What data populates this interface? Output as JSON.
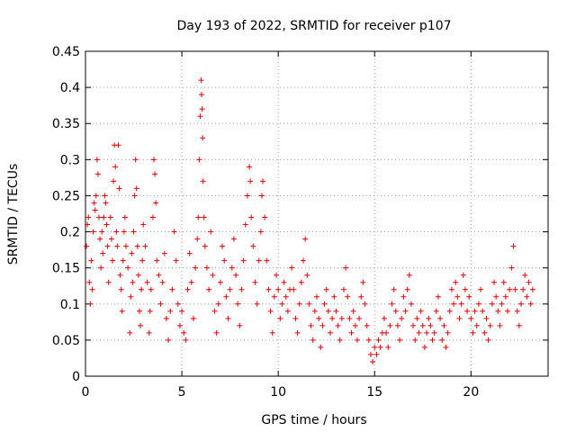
{
  "chart_data": {
    "type": "scatter",
    "title": "Day 193 of 2022, SRMTID for receiver p107",
    "xlabel": "GPS time / hours",
    "ylabel": "SRMTID / TECUs",
    "xlim": [
      0,
      24
    ],
    "ylim": [
      0,
      0.45
    ],
    "x_ticks": [
      0,
      5,
      10,
      15,
      20
    ],
    "x_tick_labels": [
      "0",
      "5",
      "10",
      "15",
      "20"
    ],
    "y_ticks": [
      0,
      0.05,
      0.1,
      0.15,
      0.2,
      0.25,
      0.3,
      0.35,
      0.4,
      0.45
    ],
    "y_tick_labels": [
      "0",
      "0.05",
      "0.1",
      "0.15",
      "0.2",
      "0.25",
      "0.3",
      "0.35",
      "0.4",
      "0.45"
    ],
    "grid": true,
    "marker": "+",
    "color": "#e00000",
    "series": [
      {
        "name": "SRMTID",
        "points": [
          [
            0.05,
            0.18
          ],
          [
            0.1,
            0.21
          ],
          [
            0.15,
            0.22
          ],
          [
            0.2,
            0.13
          ],
          [
            0.25,
            0.1
          ],
          [
            0.3,
            0.16
          ],
          [
            0.35,
            0.12
          ],
          [
            0.4,
            0.2
          ],
          [
            0.45,
            0.24
          ],
          [
            0.5,
            0.23
          ],
          [
            0.55,
            0.25
          ],
          [
            0.6,
            0.3
          ],
          [
            0.65,
            0.28
          ],
          [
            0.7,
            0.22
          ],
          [
            0.75,
            0.19
          ],
          [
            0.8,
            0.15
          ],
          [
            0.85,
            0.2
          ],
          [
            0.9,
            0.17
          ],
          [
            0.95,
            0.22
          ],
          [
            1.0,
            0.25
          ],
          [
            1.05,
            0.24
          ],
          [
            1.1,
            0.21
          ],
          [
            1.15,
            0.18
          ],
          [
            1.2,
            0.13
          ],
          [
            1.3,
            0.22
          ],
          [
            1.35,
            0.19
          ],
          [
            1.4,
            0.16
          ],
          [
            1.45,
            0.27
          ],
          [
            1.5,
            0.32
          ],
          [
            1.55,
            0.29
          ],
          [
            1.6,
            0.2
          ],
          [
            1.65,
            0.18
          ],
          [
            1.7,
            0.32
          ],
          [
            1.75,
            0.26
          ],
          [
            1.8,
            0.14
          ],
          [
            1.85,
            0.12
          ],
          [
            1.9,
            0.09
          ],
          [
            1.95,
            0.16
          ],
          [
            2.0,
            0.2
          ],
          [
            2.05,
            0.22
          ],
          [
            2.1,
            0.18
          ],
          [
            2.2,
            0.15
          ],
          [
            2.3,
            0.06
          ],
          [
            2.35,
            0.11
          ],
          [
            2.4,
            0.17
          ],
          [
            2.45,
            0.13
          ],
          [
            2.5,
            0.2
          ],
          [
            2.55,
            0.25
          ],
          [
            2.6,
            0.3
          ],
          [
            2.65,
            0.26
          ],
          [
            2.7,
            0.18
          ],
          [
            2.75,
            0.14
          ],
          [
            2.8,
            0.09
          ],
          [
            2.85,
            0.07
          ],
          [
            2.9,
            0.12
          ],
          [
            2.95,
            0.16
          ],
          [
            3.0,
            0.21
          ],
          [
            3.1,
            0.18
          ],
          [
            3.2,
            0.13
          ],
          [
            3.3,
            0.06
          ],
          [
            3.35,
            0.09
          ],
          [
            3.4,
            0.12
          ],
          [
            3.5,
            0.22
          ],
          [
            3.55,
            0.3
          ],
          [
            3.6,
            0.28
          ],
          [
            3.65,
            0.24
          ],
          [
            3.7,
            0.16
          ],
          [
            3.8,
            0.14
          ],
          [
            3.9,
            0.1
          ],
          [
            4.0,
            0.13
          ],
          [
            4.1,
            0.17
          ],
          [
            4.2,
            0.08
          ],
          [
            4.3,
            0.05
          ],
          [
            4.4,
            0.09
          ],
          [
            4.5,
            0.12
          ],
          [
            4.6,
            0.2
          ],
          [
            4.7,
            0.16
          ],
          [
            4.8,
            0.1
          ],
          [
            4.9,
            0.07
          ],
          [
            5.0,
            0.09
          ],
          [
            5.1,
            0.06
          ],
          [
            5.2,
            0.05
          ],
          [
            5.3,
            0.12
          ],
          [
            5.4,
            0.17
          ],
          [
            5.5,
            0.13
          ],
          [
            5.6,
            0.08
          ],
          [
            5.7,
            0.15
          ],
          [
            5.8,
            0.19
          ],
          [
            5.85,
            0.22
          ],
          [
            5.9,
            0.3
          ],
          [
            5.95,
            0.36
          ],
          [
            6.0,
            0.41
          ],
          [
            6.02,
            0.39
          ],
          [
            6.05,
            0.37
          ],
          [
            6.08,
            0.33
          ],
          [
            6.1,
            0.27
          ],
          [
            6.15,
            0.22
          ],
          [
            6.2,
            0.18
          ],
          [
            6.3,
            0.15
          ],
          [
            6.4,
            0.12
          ],
          [
            6.5,
            0.2
          ],
          [
            6.6,
            0.14
          ],
          [
            6.7,
            0.09
          ],
          [
            6.8,
            0.06
          ],
          [
            6.9,
            0.1
          ],
          [
            7.0,
            0.13
          ],
          [
            7.1,
            0.18
          ],
          [
            7.2,
            0.16
          ],
          [
            7.3,
            0.11
          ],
          [
            7.4,
            0.08
          ],
          [
            7.5,
            0.12
          ],
          [
            7.6,
            0.15
          ],
          [
            7.7,
            0.19
          ],
          [
            7.8,
            0.14
          ],
          [
            7.9,
            0.1
          ],
          [
            8.0,
            0.07
          ],
          [
            8.1,
            0.12
          ],
          [
            8.2,
            0.16
          ],
          [
            8.3,
            0.21
          ],
          [
            8.4,
            0.25
          ],
          [
            8.5,
            0.29
          ],
          [
            8.55,
            0.27
          ],
          [
            8.6,
            0.22
          ],
          [
            8.7,
            0.18
          ],
          [
            8.8,
            0.13
          ],
          [
            8.9,
            0.1
          ],
          [
            9.0,
            0.16
          ],
          [
            9.1,
            0.2
          ],
          [
            9.15,
            0.25
          ],
          [
            9.2,
            0.27
          ],
          [
            9.3,
            0.22
          ],
          [
            9.4,
            0.16
          ],
          [
            9.5,
            0.12
          ],
          [
            9.6,
            0.09
          ],
          [
            9.7,
            0.06
          ],
          [
            9.8,
            0.11
          ],
          [
            9.9,
            0.14
          ],
          [
            10.0,
            0.12
          ],
          [
            10.1,
            0.08
          ],
          [
            10.2,
            0.1
          ],
          [
            10.3,
            0.13
          ],
          [
            10.4,
            0.11
          ],
          [
            10.5,
            0.09
          ],
          [
            10.6,
            0.12
          ],
          [
            10.7,
            0.15
          ],
          [
            10.8,
            0.12
          ],
          [
            10.9,
            0.08
          ],
          [
            11.0,
            0.06
          ],
          [
            11.1,
            0.1
          ],
          [
            11.2,
            0.13
          ],
          [
            11.3,
            0.16
          ],
          [
            11.4,
            0.19
          ],
          [
            11.5,
            0.14
          ],
          [
            11.6,
            0.1
          ],
          [
            11.7,
            0.07
          ],
          [
            11.8,
            0.05
          ],
          [
            11.9,
            0.09
          ],
          [
            12.0,
            0.11
          ],
          [
            12.1,
            0.08
          ],
          [
            12.2,
            0.04
          ],
          [
            12.3,
            0.07
          ],
          [
            12.4,
            0.1
          ],
          [
            12.5,
            0.12
          ],
          [
            12.6,
            0.09
          ],
          [
            12.7,
            0.06
          ],
          [
            12.8,
            0.08
          ],
          [
            12.9,
            0.11
          ],
          [
            13.0,
            0.09
          ],
          [
            13.1,
            0.07
          ],
          [
            13.2,
            0.05
          ],
          [
            13.3,
            0.08
          ],
          [
            13.4,
            0.12
          ],
          [
            13.5,
            0.15
          ],
          [
            13.6,
            0.11
          ],
          [
            13.7,
            0.08
          ],
          [
            13.8,
            0.06
          ],
          [
            13.9,
            0.09
          ],
          [
            14.0,
            0.07
          ],
          [
            14.1,
            0.05
          ],
          [
            14.2,
            0.08
          ],
          [
            14.3,
            0.11
          ],
          [
            14.4,
            0.13
          ],
          [
            14.5,
            0.1
          ],
          [
            14.6,
            0.07
          ],
          [
            14.7,
            0.05
          ],
          [
            14.8,
            0.03
          ],
          [
            14.9,
            0.02
          ],
          [
            15.0,
            0.04
          ],
          [
            15.1,
            0.03
          ],
          [
            15.2,
            0.05
          ],
          [
            15.3,
            0.04
          ],
          [
            15.4,
            0.06
          ],
          [
            15.5,
            0.08
          ],
          [
            15.6,
            0.06
          ],
          [
            15.7,
            0.04
          ],
          [
            15.8,
            0.07
          ],
          [
            15.9,
            0.1
          ],
          [
            16.0,
            0.12
          ],
          [
            16.1,
            0.09
          ],
          [
            16.2,
            0.07
          ],
          [
            16.3,
            0.05
          ],
          [
            16.4,
            0.08
          ],
          [
            16.5,
            0.11
          ],
          [
            16.6,
            0.09
          ],
          [
            16.7,
            0.12
          ],
          [
            16.8,
            0.14
          ],
          [
            16.9,
            0.1
          ],
          [
            17.0,
            0.07
          ],
          [
            17.1,
            0.05
          ],
          [
            17.2,
            0.08
          ],
          [
            17.3,
            0.06
          ],
          [
            17.4,
            0.09
          ],
          [
            17.5,
            0.07
          ],
          [
            17.6,
            0.04
          ],
          [
            17.7,
            0.06
          ],
          [
            17.8,
            0.08
          ],
          [
            17.9,
            0.07
          ],
          [
            18.0,
            0.05
          ],
          [
            18.1,
            0.06
          ],
          [
            18.2,
            0.09
          ],
          [
            18.3,
            0.11
          ],
          [
            18.4,
            0.08
          ],
          [
            18.5,
            0.05
          ],
          [
            18.6,
            0.07
          ],
          [
            18.7,
            0.04
          ],
          [
            18.8,
            0.06
          ],
          [
            18.9,
            0.09
          ],
          [
            19.0,
            0.12
          ],
          [
            19.1,
            0.1
          ],
          [
            19.2,
            0.13
          ],
          [
            19.3,
            0.11
          ],
          [
            19.4,
            0.08
          ],
          [
            19.5,
            0.1
          ],
          [
            19.6,
            0.14
          ],
          [
            19.7,
            0.12
          ],
          [
            19.8,
            0.09
          ],
          [
            19.9,
            0.11
          ],
          [
            20.0,
            0.08
          ],
          [
            20.1,
            0.06
          ],
          [
            20.2,
            0.09
          ],
          [
            20.3,
            0.07
          ],
          [
            20.4,
            0.1
          ],
          [
            20.5,
            0.12
          ],
          [
            20.6,
            0.09
          ],
          [
            20.7,
            0.06
          ],
          [
            20.8,
            0.08
          ],
          [
            20.9,
            0.05
          ],
          [
            21.0,
            0.07
          ],
          [
            21.1,
            0.1
          ],
          [
            21.2,
            0.13
          ],
          [
            21.3,
            0.11
          ],
          [
            21.4,
            0.09
          ],
          [
            21.5,
            0.07
          ],
          [
            21.6,
            0.1
          ],
          [
            21.7,
            0.13
          ],
          [
            21.8,
            0.11
          ],
          [
            21.9,
            0.09
          ],
          [
            22.0,
            0.12
          ],
          [
            22.1,
            0.15
          ],
          [
            22.2,
            0.18
          ],
          [
            22.3,
            0.12
          ],
          [
            22.4,
            0.09
          ],
          [
            22.5,
            0.07
          ],
          [
            22.6,
            0.1
          ],
          [
            22.7,
            0.12
          ],
          [
            22.8,
            0.14
          ],
          [
            22.9,
            0.11
          ],
          [
            23.0,
            0.13
          ],
          [
            23.1,
            0.1
          ],
          [
            23.2,
            0.12
          ]
        ]
      }
    ]
  }
}
